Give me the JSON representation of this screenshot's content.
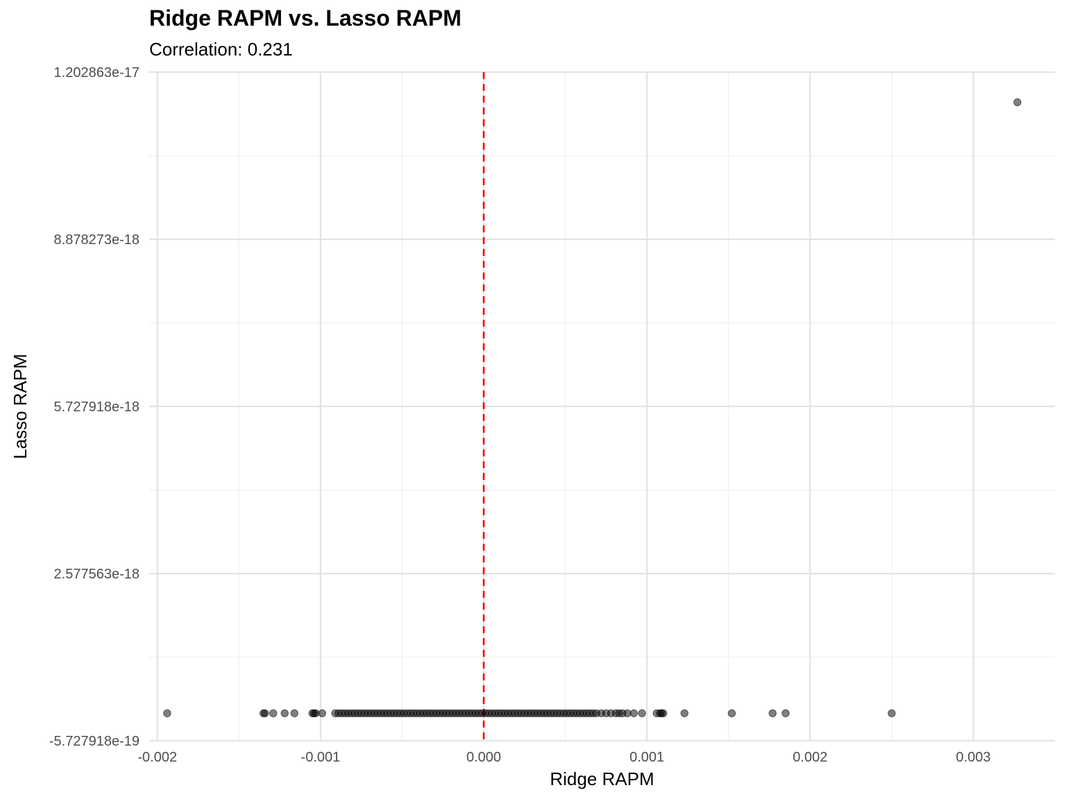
{
  "chart_data": {
    "type": "scatter",
    "title": "Ridge RAPM vs. Lasso RAPM",
    "subtitle": "Correlation: 0.231",
    "xlabel": "Ridge RAPM",
    "ylabel": "Lasso RAPM",
    "xlim": [
      -0.00205,
      0.0035
    ],
    "ylim": [
      -5.727918e-19,
      1.202863e-17
    ],
    "x_ticks": [
      -0.002,
      -0.001,
      0.0,
      0.001,
      0.002,
      0.003
    ],
    "x_tick_labels": [
      "-0.002",
      "-0.001",
      "0.000",
      "0.001",
      "0.002",
      "0.003"
    ],
    "y_ticks": [
      -5.727918e-19,
      2.577563e-18,
      5.727918e-18,
      8.878273e-18,
      1.202863e-17
    ],
    "y_tick_labels": [
      "-5.727918e-19",
      "2.577563e-18",
      "5.727918e-18",
      "8.878273e-18",
      "1.202863e-17"
    ],
    "grid": true,
    "reference_line": {
      "orientation": "vertical",
      "x": 0.0,
      "style": "dashed",
      "color": "#ff0000"
    },
    "point_color": "#000000",
    "point_alpha": 0.5,
    "series": [
      {
        "x": [
          -0.00194,
          -0.00135,
          -0.00134,
          -0.00129,
          -0.00122,
          -0.00116,
          -0.00105,
          -0.00104,
          -0.00103,
          -0.00099,
          -0.00091,
          -0.00089,
          -0.00087,
          -0.00085,
          -0.00083,
          -0.00081,
          -0.00079,
          -0.00077,
          -0.00075,
          -0.00073,
          -0.00071,
          -0.00069,
          -0.00067,
          -0.00065,
          -0.00063,
          -0.00061,
          -0.00059,
          -0.00057,
          -0.00055,
          -0.00053,
          -0.00051,
          -0.00049,
          -0.00047,
          -0.00045,
          -0.00043,
          -0.00041,
          -0.00039,
          -0.00037,
          -0.00035,
          -0.00033,
          -0.00031,
          -0.00029,
          -0.00027,
          -0.00025,
          -0.00023,
          -0.00021,
          -0.00019,
          -0.00017,
          -0.00015,
          -0.00013,
          -0.00011,
          -9e-05,
          -7e-05,
          -5e-05,
          -3e-05,
          -1e-05,
          1e-05,
          3e-05,
          5e-05,
          7e-05,
          9e-05,
          0.00011,
          0.00013,
          0.00015,
          0.00017,
          0.00019,
          0.00021,
          0.00023,
          0.00025,
          0.00027,
          0.00029,
          0.00031,
          0.00033,
          0.00035,
          0.00037,
          0.00039,
          0.00041,
          0.00043,
          0.00045,
          0.00047,
          0.00049,
          0.00051,
          0.00053,
          0.00055,
          0.00057,
          0.00059,
          0.00061,
          0.00063,
          0.00065,
          0.00067,
          0.00069,
          0.00072,
          0.00075,
          0.00078,
          0.00081,
          0.00083,
          0.00085,
          0.00088,
          0.00092,
          0.00097,
          0.00106,
          0.00108,
          0.00109,
          0.0011,
          0.00123,
          0.00152,
          0.00177,
          0.00185,
          0.0025,
          0.00327
        ],
        "y": [
          -5.5e-20,
          -5.5e-20,
          -5.5e-20,
          -5.5e-20,
          -5.5e-20,
          -5.5e-20,
          -5.5e-20,
          -5.5e-20,
          -5.5e-20,
          -5.5e-20,
          -5.5e-20,
          -5.5e-20,
          -5.5e-20,
          -5.5e-20,
          -5.5e-20,
          -5.5e-20,
          -5.5e-20,
          -5.5e-20,
          -5.5e-20,
          -5.5e-20,
          -5.5e-20,
          -5.5e-20,
          -5.5e-20,
          -5.5e-20,
          -5.5e-20,
          -5.5e-20,
          -5.5e-20,
          -5.5e-20,
          -5.5e-20,
          -5.5e-20,
          -5.5e-20,
          -5.5e-20,
          -5.5e-20,
          -5.5e-20,
          -5.5e-20,
          -5.5e-20,
          -5.5e-20,
          -5.5e-20,
          -5.5e-20,
          -5.5e-20,
          -5.5e-20,
          -5.5e-20,
          -5.5e-20,
          -5.5e-20,
          -5.5e-20,
          -5.5e-20,
          -5.5e-20,
          -5.5e-20,
          -5.5e-20,
          -5.5e-20,
          -5.5e-20,
          -5.5e-20,
          -5.5e-20,
          -5.5e-20,
          -5.5e-20,
          -5.5e-20,
          -5.5e-20,
          -5.5e-20,
          -5.5e-20,
          -5.5e-20,
          -5.5e-20,
          -5.5e-20,
          -5.5e-20,
          -5.5e-20,
          -5.5e-20,
          -5.5e-20,
          -5.5e-20,
          -5.5e-20,
          -5.5e-20,
          -5.5e-20,
          -5.5e-20,
          -5.5e-20,
          -5.5e-20,
          -5.5e-20,
          -5.5e-20,
          -5.5e-20,
          -5.5e-20,
          -5.5e-20,
          -5.5e-20,
          -5.5e-20,
          -5.5e-20,
          -5.5e-20,
          -5.5e-20,
          -5.5e-20,
          -5.5e-20,
          -5.5e-20,
          -5.5e-20,
          -5.5e-20,
          -5.5e-20,
          -5.5e-20,
          -5.5e-20,
          -5.5e-20,
          -5.5e-20,
          -5.5e-20,
          -5.5e-20,
          -5.5e-20,
          -5.5e-20,
          -5.5e-20,
          -5.5e-20,
          -5.5e-20,
          -5.5e-20,
          -5.5e-20,
          -5.5e-20,
          -5.5e-20,
          -5.5e-20,
          -5.5e-20,
          -5.5e-20,
          -5.5e-20,
          -5.5e-20,
          1.146e-17
        ]
      }
    ]
  }
}
